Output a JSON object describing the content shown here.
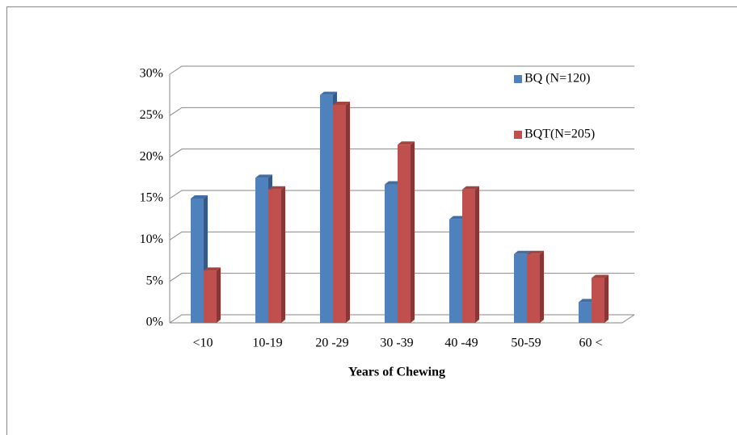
{
  "chart_data": {
    "type": "bar3d",
    "xlabel": "Years of Chewing",
    "categories": [
      "<10",
      "10-19",
      "20 -29",
      "30 -39",
      "40 -49",
      "50-59",
      "60 <"
    ],
    "series": [
      {
        "name": "BQ (N=120)",
        "color": "#4f81bd",
        "values": [
          15,
          17.5,
          27.5,
          16.7,
          12.5,
          8.3,
          2.5
        ]
      },
      {
        "name": "BQT(N=205)",
        "color": "#c0504d",
        "values": [
          6.3,
          16.1,
          26.3,
          21.5,
          16.1,
          8.3,
          5.4
        ]
      }
    ],
    "ylim": [
      0,
      30
    ],
    "yticks": [
      {
        "value": 0,
        "label": "0%"
      },
      {
        "value": 5,
        "label": "5%"
      },
      {
        "value": 10,
        "label": "10%"
      },
      {
        "value": 15,
        "label": "15%"
      },
      {
        "value": 20,
        "label": "20%"
      },
      {
        "value": 25,
        "label": "25%"
      },
      {
        "value": 30,
        "label": "30%"
      }
    ],
    "grid": true,
    "legend": "top-right"
  }
}
